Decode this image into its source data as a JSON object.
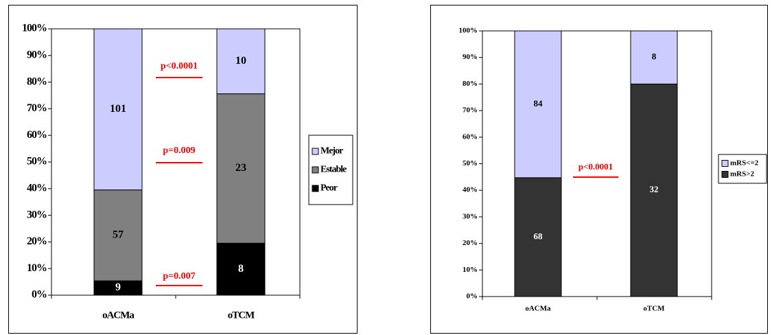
{
  "chart_data": [
    {
      "type": "percent_stacked_bar",
      "categories": [
        "oACMa",
        "oTCM"
      ],
      "series": [
        {
          "name": "Peor",
          "color": "#000000",
          "values": [
            9,
            8
          ]
        },
        {
          "name": "Estable",
          "color": "#808080",
          "values": [
            57,
            23
          ]
        },
        {
          "name": "Mejor",
          "color": "#ccccff",
          "values": [
            101,
            10
          ]
        }
      ],
      "ylim": [
        0,
        100
      ],
      "yticks": [
        {
          "value": 0,
          "label": "0%"
        },
        {
          "value": 10,
          "label": "10%"
        },
        {
          "value": 20,
          "label": "20%"
        },
        {
          "value": 30,
          "label": "30%"
        },
        {
          "value": 40,
          "label": "40%"
        },
        {
          "value": 50,
          "label": "50%"
        },
        {
          "value": 60,
          "label": "60%"
        },
        {
          "value": 70,
          "label": "70%"
        },
        {
          "value": 80,
          "label": "80%"
        },
        {
          "value": 90,
          "label": "90%"
        },
        {
          "value": 100,
          "label": "100%"
        }
      ],
      "annotations": [
        "p<0.0001",
        "p=0.009",
        "p=0.007"
      ],
      "legend": "right"
    },
    {
      "type": "percent_stacked_bar",
      "categories": [
        "oACMa",
        "oTCM"
      ],
      "series": [
        {
          "name": "mRS>2",
          "color": "#333333",
          "values": [
            68,
            32
          ]
        },
        {
          "name": "mRS<=2",
          "color": "#ccccff",
          "values": [
            84,
            8
          ]
        }
      ],
      "ylim": [
        0,
        100
      ],
      "yticks": [
        {
          "value": 0,
          "label": "0%"
        },
        {
          "value": 10,
          "label": "10%"
        },
        {
          "value": 20,
          "label": "20%"
        },
        {
          "value": 30,
          "label": "30%"
        },
        {
          "value": 40,
          "label": "40%"
        },
        {
          "value": 50,
          "label": "50%"
        },
        {
          "value": 60,
          "label": "60%"
        },
        {
          "value": 70,
          "label": "70%"
        },
        {
          "value": 80,
          "label": "80%"
        },
        {
          "value": 90,
          "label": "90%"
        },
        {
          "value": 100,
          "label": "100%"
        }
      ],
      "annotations": [
        "p<0.0001"
      ],
      "legend": "right"
    }
  ]
}
